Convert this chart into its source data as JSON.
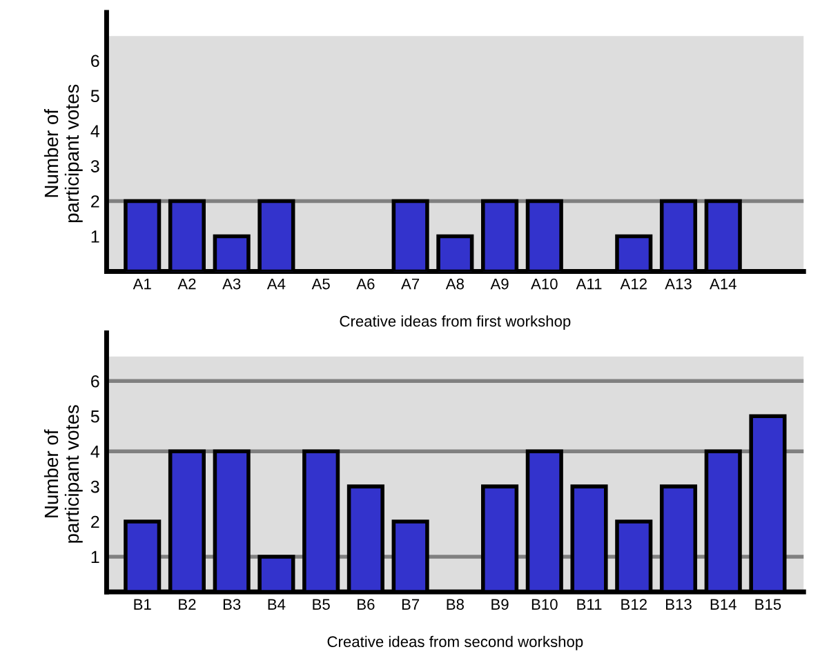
{
  "chart_data": [
    {
      "type": "bar",
      "xlabel": "Creative ideas from first workshop",
      "ylabel": "Number of\nparticipant votes",
      "categories": [
        "A1",
        "A2",
        "A3",
        "A4",
        "A5",
        "A6",
        "A7",
        "A8",
        "A9",
        "A10",
        "A11",
        "A12",
        "A13",
        "A14"
      ],
      "values": [
        2,
        2,
        1,
        2,
        0,
        0,
        2,
        1,
        2,
        2,
        0,
        1,
        2,
        2
      ],
      "color": "#3333cc",
      "ylim": [
        0,
        6.7
      ],
      "yticks": [
        1,
        2,
        3,
        4,
        5,
        6
      ],
      "grid": false,
      "ref_lines": [
        {
          "axis": "y",
          "value": 2,
          "color": "#808080"
        }
      ]
    },
    {
      "type": "bar",
      "xlabel": "Creative ideas from second workshop",
      "ylabel": "Number of\nparticipant votes",
      "categories": [
        "B1",
        "B2",
        "B3",
        "B4",
        "B5",
        "B6",
        "B7",
        "B8",
        "B9",
        "B10",
        "B11",
        "B12",
        "B13",
        "B14",
        "B15"
      ],
      "values": [
        2,
        4,
        4,
        1,
        4,
        3,
        2,
        0,
        3,
        4,
        3,
        2,
        3,
        4,
        5
      ],
      "color": "#3333cc",
      "ylim": [
        0,
        6.7
      ],
      "yticks": [
        1,
        2,
        3,
        4,
        5,
        6
      ],
      "grid": false,
      "ref_lines": [
        {
          "axis": "y",
          "value": 1,
          "color": "#808080"
        },
        {
          "axis": "y",
          "value": 4,
          "color": "#808080"
        },
        {
          "axis": "y",
          "value": 6,
          "color": "#808080"
        }
      ]
    }
  ]
}
